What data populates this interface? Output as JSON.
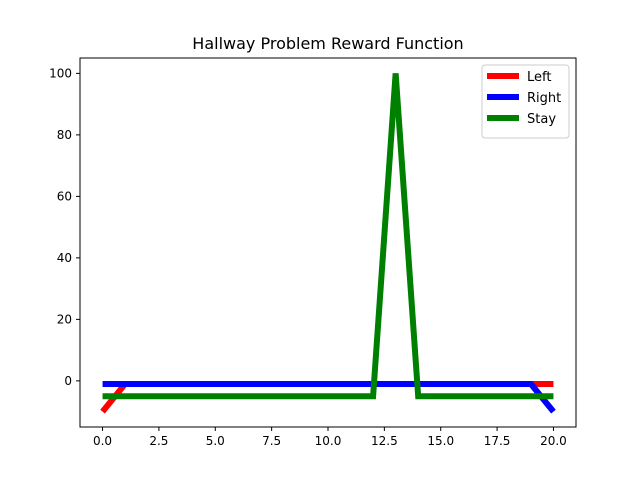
{
  "chart_data": {
    "type": "line",
    "title": "Hallway Problem Reward Function",
    "xlabel": "",
    "ylabel": "",
    "xlim": [
      -1,
      21
    ],
    "ylim": [
      -15,
      105
    ],
    "xticks": [
      0,
      2.5,
      5,
      7.5,
      10,
      12.5,
      15,
      17.5,
      20
    ],
    "xtick_labels": [
      "0.0",
      "2.5",
      "5.0",
      "7.5",
      "10.0",
      "12.5",
      "15.0",
      "17.5",
      "20.0"
    ],
    "yticks": [
      0,
      20,
      40,
      60,
      80,
      100
    ],
    "ytick_labels": [
      "0",
      "20",
      "40",
      "60",
      "80",
      "100"
    ],
    "grid": false,
    "legend_position": "top-right",
    "series": [
      {
        "name": "Left",
        "color": "#ff0000",
        "x": [
          0,
          1,
          2,
          3,
          4,
          5,
          6,
          7,
          8,
          9,
          10,
          11,
          12,
          13,
          14,
          15,
          16,
          17,
          18,
          19,
          20
        ],
        "values": [
          -10,
          -1,
          -1,
          -1,
          -1,
          -1,
          -1,
          -1,
          -1,
          -1,
          -1,
          -1,
          -1,
          -1,
          -1,
          -1,
          -1,
          -1,
          -1,
          -1,
          -1
        ]
      },
      {
        "name": "Right",
        "color": "#0000ff",
        "x": [
          0,
          1,
          2,
          3,
          4,
          5,
          6,
          7,
          8,
          9,
          10,
          11,
          12,
          13,
          14,
          15,
          16,
          17,
          18,
          19,
          20
        ],
        "values": [
          -1,
          -1,
          -1,
          -1,
          -1,
          -1,
          -1,
          -1,
          -1,
          -1,
          -1,
          -1,
          -1,
          -1,
          -1,
          -1,
          -1,
          -1,
          -1,
          -1,
          -10
        ]
      },
      {
        "name": "Stay",
        "color": "#008000",
        "x": [
          0,
          1,
          2,
          3,
          4,
          5,
          6,
          7,
          8,
          9,
          10,
          11,
          12,
          13,
          14,
          15,
          16,
          17,
          18,
          19,
          20
        ],
        "values": [
          -5,
          -5,
          -5,
          -5,
          -5,
          -5,
          -5,
          -5,
          -5,
          -5,
          -5,
          -5,
          -5,
          100,
          -5,
          -5,
          -5,
          -5,
          -5,
          -5,
          -5
        ]
      }
    ]
  }
}
